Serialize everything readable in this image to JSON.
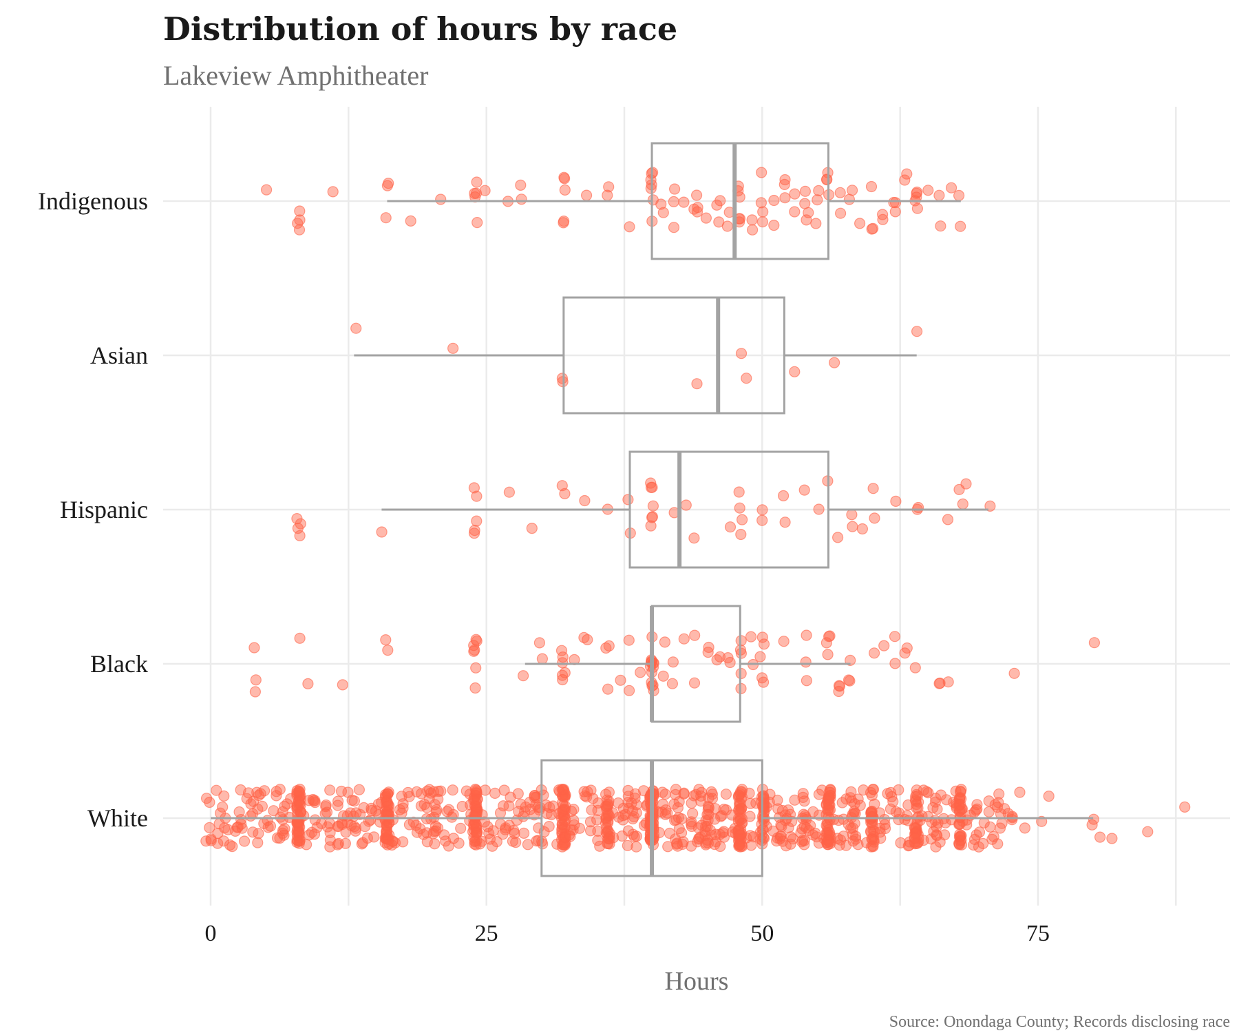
{
  "colors": {
    "point_fill": "#ff6347",
    "box": "#a3a3a3",
    "grid": "#ebebeb",
    "title": "#1a1a1a",
    "subtitle": "#707070"
  },
  "chart_data": {
    "type": "boxplot",
    "title": "Distribution of hours by race",
    "subtitle": "Lakeview Amphitheater",
    "xlabel": "Hours",
    "ylabel": "",
    "caption": "Source: Onondaga County; Records disclosing race",
    "xlim": [
      -3,
      90
    ],
    "x_ticks": [
      0,
      25,
      50,
      75
    ],
    "x_tick_labels": [
      "0",
      "25",
      "50",
      "75"
    ],
    "grid": true,
    "orientation": "horizontal",
    "point_marker": "jittered-points-with-boxplot",
    "categories": [
      "Indigenous",
      "Asian",
      "Hispanic",
      "Black",
      "White"
    ],
    "boxes": [
      {
        "category": "Indigenous",
        "whisker_low": 16,
        "q1": 40,
        "median": 47.5,
        "q3": 56,
        "whisker_high": 68
      },
      {
        "category": "Asian",
        "whisker_low": 13,
        "q1": 32,
        "median": 46,
        "q3": 52,
        "whisker_high": 64
      },
      {
        "category": "Hispanic",
        "whisker_low": 15.5,
        "q1": 38,
        "median": 42.5,
        "q3": 56,
        "whisker_high": 70.5
      },
      {
        "category": "Black",
        "whisker_low": 28.5,
        "q1": 40,
        "median": 40,
        "q3": 48,
        "whisker_high": 58
      },
      {
        "category": "White",
        "whisker_low": 0,
        "q1": 30,
        "median": 40,
        "q3": 50,
        "whisker_high": 80
      }
    ],
    "points": {
      "Indigenous": [
        5,
        8,
        8,
        8,
        8,
        11,
        16,
        16,
        16,
        18,
        21,
        24,
        24,
        24,
        24,
        24,
        25,
        27,
        28,
        28,
        32,
        32,
        32,
        32,
        32,
        34,
        36,
        36,
        38,
        40,
        40,
        40,
        40,
        40,
        40,
        40,
        41,
        41,
        42,
        42,
        42,
        43,
        44,
        44,
        44,
        44,
        45,
        46,
        46,
        46,
        47,
        47,
        48,
        48,
        48,
        48,
        48,
        48,
        49,
        49,
        50,
        50,
        50,
        50,
        51,
        51,
        52,
        52,
        52,
        53,
        53,
        54,
        54,
        54,
        54,
        55,
        55,
        55,
        56,
        56,
        56,
        56,
        57,
        57,
        58,
        58,
        59,
        60,
        60,
        60,
        61,
        61,
        62,
        62,
        62,
        63,
        63,
        64,
        64,
        64,
        64,
        64,
        65,
        66,
        66,
        67,
        68,
        68
      ],
      "Asian": [
        13,
        22,
        32,
        32,
        44,
        48,
        48.5,
        53,
        56.5,
        64
      ],
      "Hispanic": [
        8,
        8,
        8,
        8,
        15.5,
        24,
        24,
        24,
        24,
        24,
        27,
        29,
        32,
        32,
        34,
        36,
        38,
        38,
        40,
        40,
        40,
        40,
        40,
        40,
        40,
        42,
        43,
        44,
        47,
        48,
        48,
        48,
        48,
        50,
        50,
        52,
        52,
        54,
        55,
        56,
        57,
        58,
        58,
        59,
        60,
        60,
        62,
        64,
        64,
        67,
        68,
        68,
        68.5,
        70.5
      ],
      "Black": [
        4,
        4,
        4,
        8,
        9,
        12,
        16,
        16,
        24,
        24,
        24,
        24,
        24,
        24,
        24,
        28.5,
        30,
        30,
        32,
        32,
        32,
        32,
        32,
        32,
        33,
        34,
        34,
        36,
        36,
        36,
        37,
        38,
        38,
        39,
        40,
        40,
        40,
        40,
        40,
        40,
        40,
        40,
        40,
        40,
        40,
        40,
        40,
        40,
        41,
        41,
        42,
        42,
        43,
        44,
        44,
        45,
        45,
        46,
        46,
        47,
        47,
        48,
        48,
        48,
        48,
        48,
        49,
        49,
        50,
        50,
        50,
        50,
        50,
        52,
        54,
        54,
        54,
        56,
        56,
        56,
        56,
        57,
        57,
        57,
        58,
        58,
        58,
        60,
        61,
        62,
        62,
        63,
        63,
        64,
        66,
        66,
        67,
        73,
        80
      ],
      "White_dense_hours": [
        0,
        1,
        2,
        3,
        4,
        5,
        6,
        7,
        8,
        8,
        8,
        9,
        10,
        11,
        12,
        12,
        13,
        14,
        15,
        16,
        16,
        16,
        17,
        18,
        19,
        20,
        20,
        21,
        22,
        23,
        24,
        24,
        24,
        25,
        26,
        27,
        28,
        29,
        30,
        30,
        31,
        32,
        32,
        32,
        33,
        34,
        35,
        36,
        36,
        37,
        38,
        38,
        39,
        40,
        40,
        40,
        40,
        41,
        42,
        42,
        43,
        44,
        44,
        45,
        46,
        46,
        47,
        48,
        48,
        48,
        49,
        50,
        50,
        51,
        52,
        52,
        53,
        54,
        54,
        55,
        56,
        56,
        56,
        57,
        58,
        58,
        59,
        60,
        60,
        61,
        62,
        63,
        64,
        64,
        65,
        66,
        66,
        67,
        68,
        68,
        69,
        70,
        71,
        72,
        73,
        74,
        75,
        76,
        80,
        80,
        81,
        82,
        85,
        88
      ]
    }
  }
}
